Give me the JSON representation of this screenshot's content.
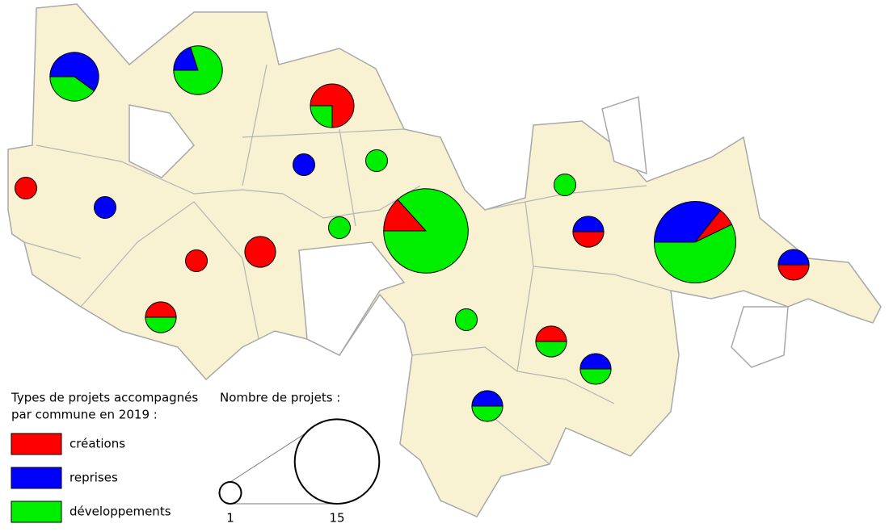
{
  "legend": {
    "title_lines": [
      "Types de projets accompagnés",
      "par commune en 2019 :"
    ],
    "categories": [
      {
        "label": "créations",
        "color": "#ff0000"
      },
      {
        "label": "reprises",
        "color": "#0000ff"
      },
      {
        "label": "développements",
        "color": "#00ee00"
      }
    ]
  },
  "size_legend": {
    "title": "Nombre de projets :",
    "values": [
      1,
      15
    ]
  },
  "pies": [
    [
      0,
      3,
      2
    ],
    [
      0,
      1,
      4
    ],
    [
      3,
      0,
      1
    ],
    [
      0,
      1,
      0
    ],
    [
      0,
      0,
      1
    ],
    [
      1,
      0,
      0
    ],
    [
      0,
      1,
      0
    ],
    [
      0,
      0,
      1
    ],
    [
      0,
      0,
      1
    ],
    [
      2,
      0,
      13
    ],
    [
      1,
      0,
      0
    ],
    [
      2,
      0,
      0
    ],
    [
      1,
      1,
      0
    ],
    [
      1,
      5,
      8
    ],
    [
      1,
      1,
      0
    ],
    [
      1,
      0,
      1
    ],
    [
      0,
      0,
      1
    ],
    [
      1,
      0,
      1
    ],
    [
      0,
      1,
      1
    ],
    [
      0,
      1,
      1
    ]
  ]
}
